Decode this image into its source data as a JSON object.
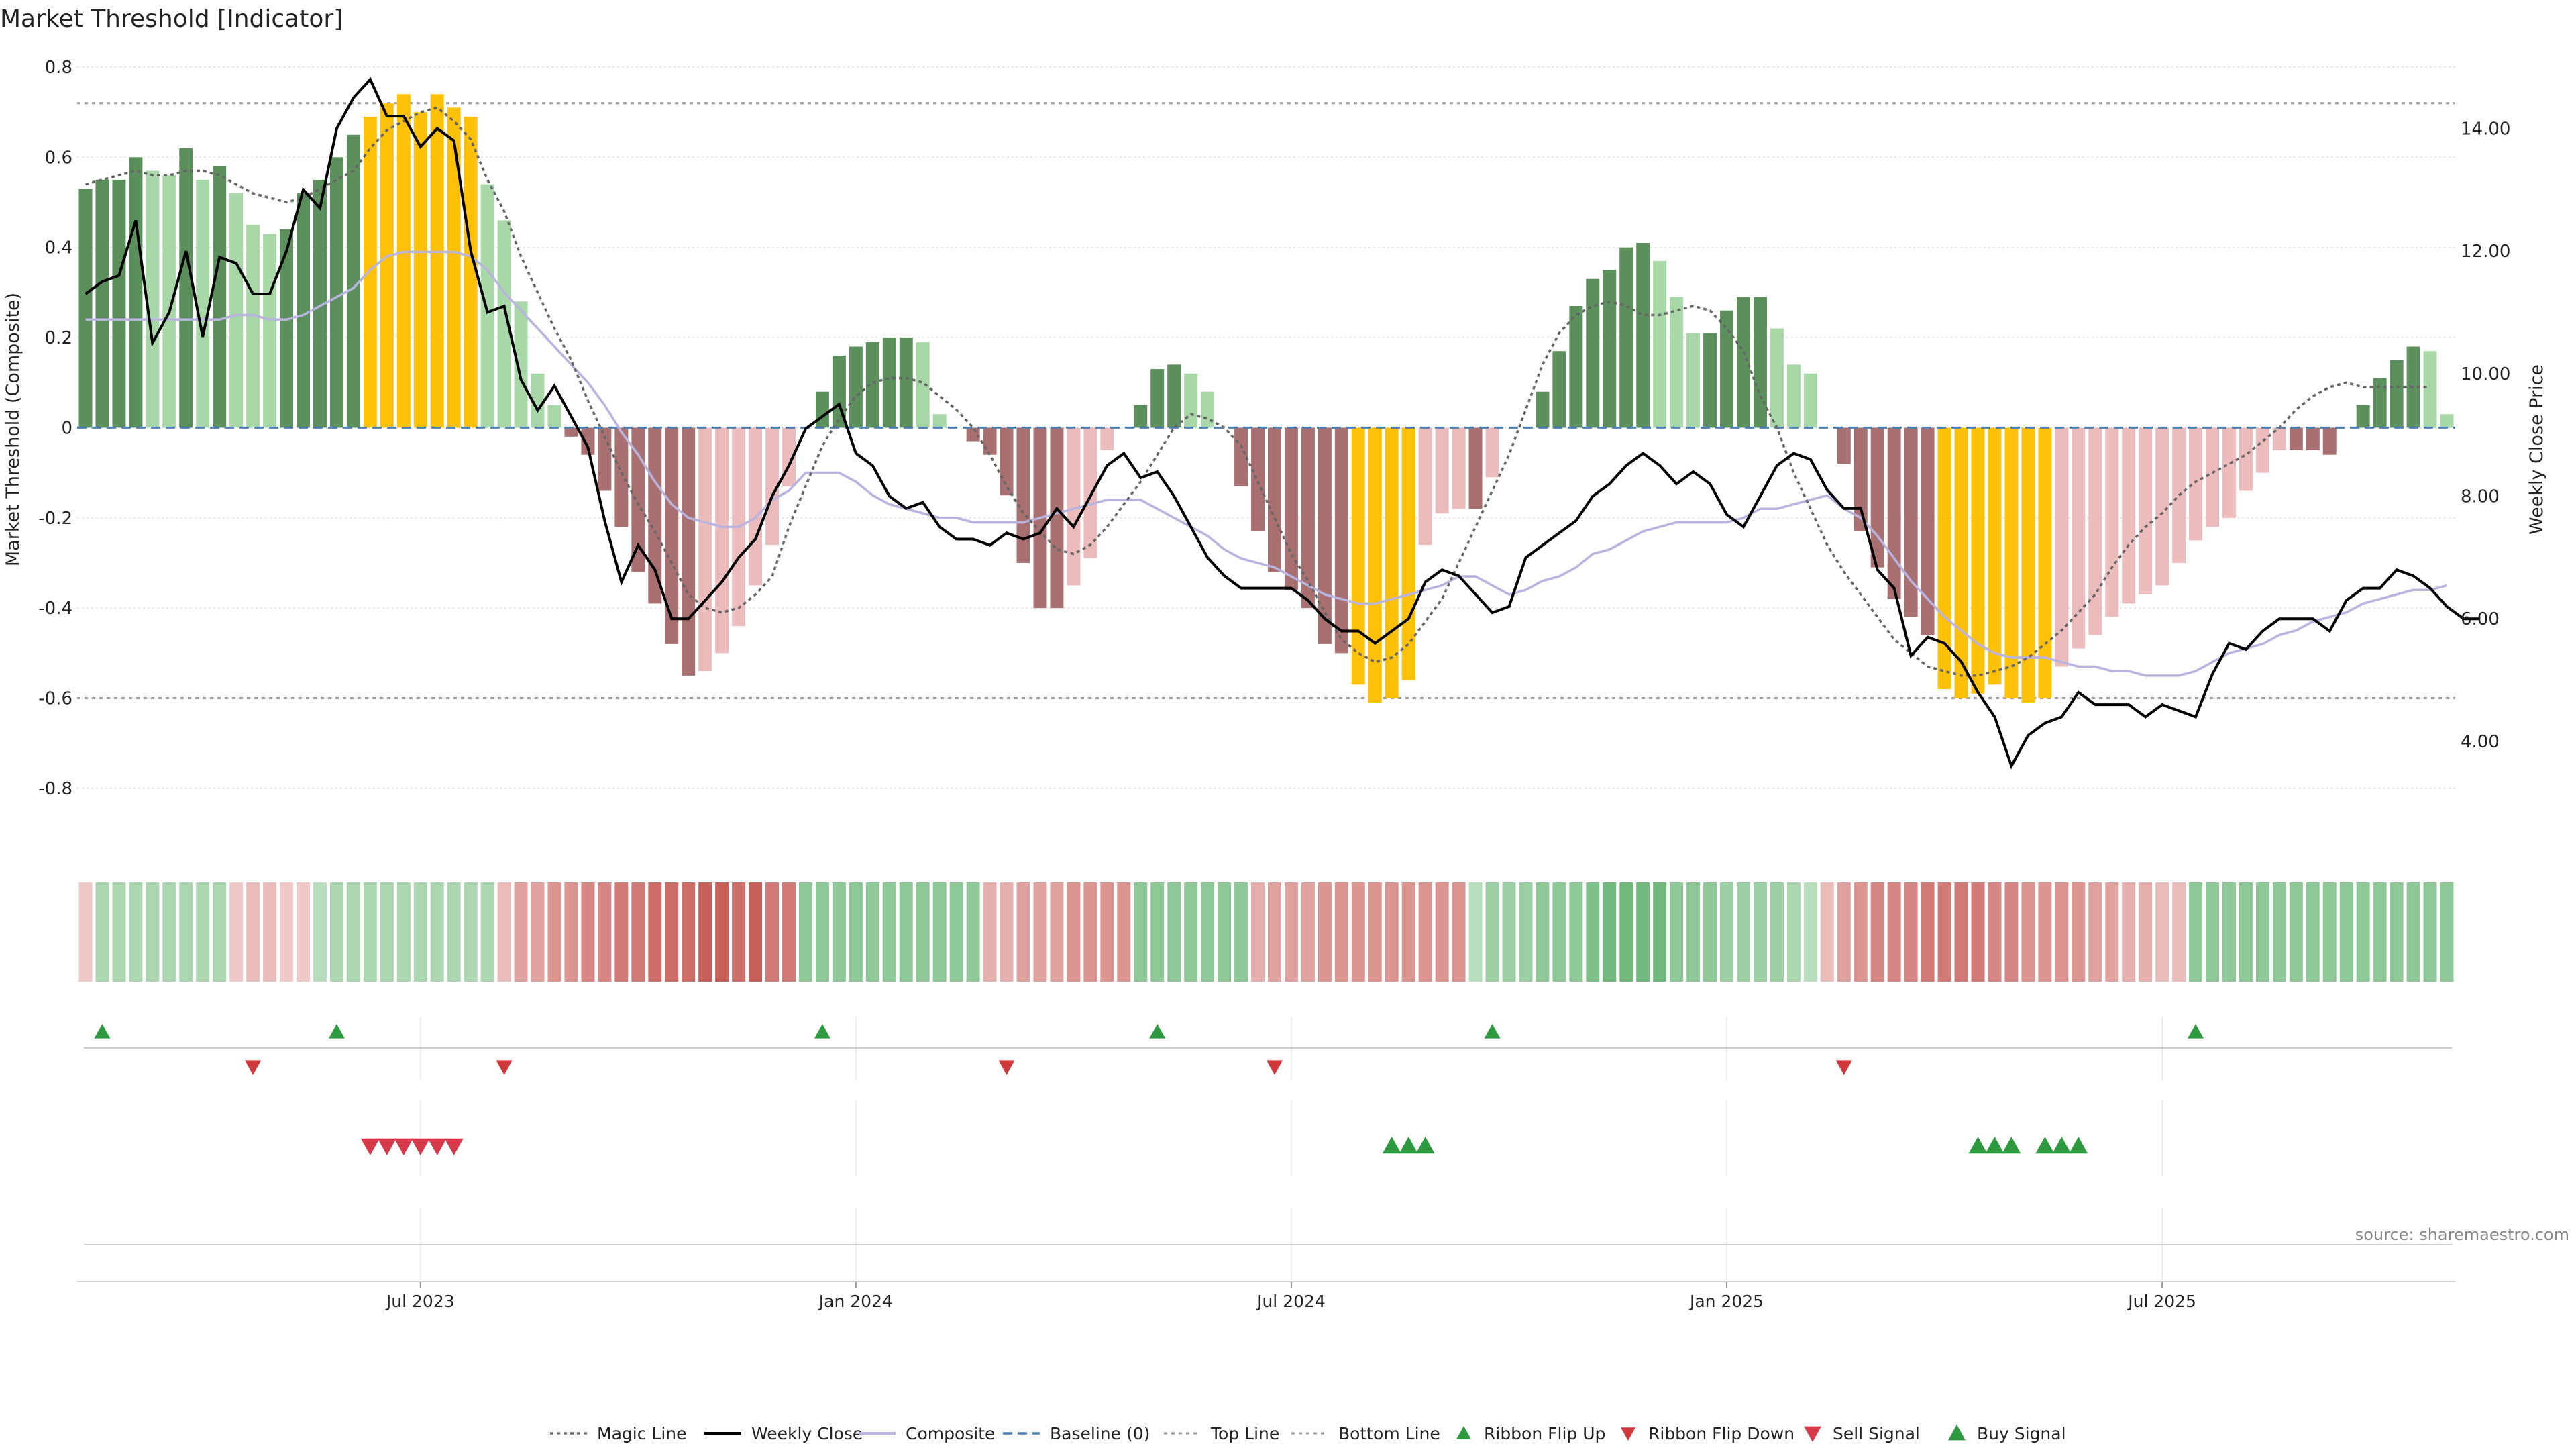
{
  "chart_data": {
    "type": "bar",
    "title": "Market Threshold [Indicator]",
    "ylabel": "Market Threshold (Composite)",
    "y2label": "Weekly Close Price",
    "source": "source: sharemaestro.com",
    "ylim": [
      -0.9,
      0.8
    ],
    "y2lim": [
      2.5,
      15.0
    ],
    "yticks": [
      "0.8",
      "0.6",
      "0.4",
      "0.2",
      "0",
      "-0.2",
      "-0.4",
      "-0.6",
      "-0.8"
    ],
    "y2ticks": [
      "14.00",
      "12.00",
      "10.00",
      "8.00",
      "6.00",
      "4.00"
    ],
    "xticks": [
      "Jul 2023",
      "Jan 2024",
      "Jul 2024",
      "Jan 2025",
      "Jul 2025"
    ],
    "xtick_week_index": [
      20.5,
      46.5,
      72.5,
      98.5,
      124.5
    ],
    "top_line": 0.72,
    "bottom_line": -0.6,
    "colors": {
      "strong_pos": "#5b8f5b",
      "weak_pos": "#a8d8a8",
      "strong_neg": "#a87070",
      "weak_neg": "#ecbcbc",
      "extreme": "#ffc107",
      "close": "#000000",
      "composite": "#b9b3e0",
      "magic": "#666666",
      "baseline": "#4a7fb5",
      "threshold": "#999999",
      "buy": "#2e9a3f",
      "sell": "#d63a4a",
      "flip_up": "#2e9a3f",
      "flip_down": "#d0393b"
    },
    "histogram": [
      0.53,
      0.55,
      0.55,
      0.6,
      0.57,
      0.56,
      0.62,
      0.55,
      0.58,
      0.52,
      0.45,
      0.43,
      0.44,
      0.52,
      0.55,
      0.6,
      0.65,
      0.69,
      0.72,
      0.74,
      0.7,
      0.74,
      0.71,
      0.69,
      0.54,
      0.46,
      0.28,
      0.12,
      0.05,
      -0.02,
      -0.06,
      -0.14,
      -0.22,
      -0.32,
      -0.39,
      -0.48,
      -0.55,
      -0.54,
      -0.5,
      -0.44,
      -0.35,
      -0.26,
      -0.13,
      0.0,
      0.08,
      0.16,
      0.18,
      0.19,
      0.2,
      0.2,
      0.19,
      0.03,
      0.0,
      -0.03,
      -0.06,
      -0.15,
      -0.3,
      -0.4,
      -0.4,
      -0.35,
      -0.29,
      -0.05,
      0.0,
      0.05,
      0.13,
      0.14,
      0.12,
      0.08,
      0.0,
      -0.13,
      -0.23,
      -0.32,
      -0.36,
      -0.4,
      -0.48,
      -0.5,
      -0.57,
      -0.61,
      -0.6,
      -0.56,
      -0.26,
      -0.19,
      -0.18,
      -0.18,
      -0.11,
      0.0,
      0.0,
      0.08,
      0.17,
      0.27,
      0.33,
      0.35,
      0.4,
      0.41,
      0.37,
      0.29,
      0.21,
      0.21,
      0.26,
      0.29,
      0.29,
      0.22,
      0.14,
      0.12,
      0.0,
      -0.08,
      -0.23,
      -0.31,
      -0.38,
      -0.42,
      -0.46,
      -0.58,
      -0.6,
      -0.59,
      -0.57,
      -0.6,
      -0.61,
      -0.6,
      -0.53,
      -0.49,
      -0.46,
      -0.42,
      -0.39,
      -0.37,
      -0.35,
      -0.3,
      -0.25,
      -0.22,
      -0.2,
      -0.14,
      -0.1,
      -0.05,
      -0.05,
      -0.05,
      -0.06,
      0.0,
      0.05,
      0.11,
      0.15,
      0.18,
      0.17,
      0.03
    ],
    "close": [
      11.3,
      11.5,
      11.6,
      12.5,
      10.5,
      11.0,
      12.0,
      10.6,
      11.9,
      11.8,
      11.3,
      11.3,
      12.0,
      13.0,
      12.7,
      14.0,
      14.5,
      14.8,
      14.2,
      14.2,
      13.7,
      14.0,
      13.8,
      12.0,
      11.0,
      11.1,
      9.9,
      9.4,
      9.8,
      9.3,
      8.8,
      7.6,
      6.6,
      7.2,
      6.8,
      6.0,
      6.0,
      6.3,
      6.6,
      7.0,
      7.3,
      8.0,
      8.5,
      9.1,
      9.3,
      9.5,
      8.7,
      8.5,
      8.0,
      7.8,
      7.9,
      7.5,
      7.3,
      7.3,
      7.2,
      7.4,
      7.3,
      7.4,
      7.8,
      7.5,
      8.0,
      8.5,
      8.7,
      8.3,
      8.4,
      8.0,
      7.5,
      7.0,
      6.7,
      6.5,
      6.5,
      6.5,
      6.5,
      6.3,
      6.0,
      5.8,
      5.8,
      5.6,
      5.8,
      6.0,
      6.6,
      6.8,
      6.7,
      6.4,
      6.1,
      6.2,
      7.0,
      7.2,
      7.4,
      7.6,
      8.0,
      8.2,
      8.5,
      8.7,
      8.5,
      8.2,
      8.4,
      8.2,
      7.7,
      7.5,
      8.0,
      8.5,
      8.7,
      8.6,
      8.1,
      7.8,
      7.8,
      6.8,
      6.5,
      5.4,
      5.7,
      5.6,
      5.3,
      4.8,
      4.4,
      3.6,
      4.1,
      4.3,
      4.4,
      4.8,
      4.6,
      4.6,
      4.6,
      4.4,
      4.6,
      4.5,
      4.4,
      5.1,
      5.6,
      5.5,
      5.8,
      6.0,
      6.0,
      6.0,
      5.8,
      6.3,
      6.5,
      6.5,
      6.8,
      6.7,
      6.5,
      6.2,
      6.0,
      6.0
    ],
    "composite": [
      0.24,
      0.24,
      0.24,
      0.24,
      0.24,
      0.24,
      0.24,
      0.24,
      0.24,
      0.25,
      0.25,
      0.24,
      0.24,
      0.25,
      0.27,
      0.29,
      0.31,
      0.35,
      0.38,
      0.39,
      0.39,
      0.39,
      0.39,
      0.38,
      0.35,
      0.3,
      0.26,
      0.22,
      0.18,
      0.14,
      0.1,
      0.05,
      -0.01,
      -0.06,
      -0.12,
      -0.17,
      -0.2,
      -0.21,
      -0.22,
      -0.22,
      -0.2,
      -0.16,
      -0.14,
      -0.1,
      -0.1,
      -0.1,
      -0.12,
      -0.15,
      -0.17,
      -0.18,
      -0.19,
      -0.2,
      -0.2,
      -0.21,
      -0.21,
      -0.21,
      -0.21,
      -0.2,
      -0.19,
      -0.18,
      -0.17,
      -0.16,
      -0.16,
      -0.16,
      -0.18,
      -0.2,
      -0.22,
      -0.24,
      -0.27,
      -0.29,
      -0.3,
      -0.31,
      -0.33,
      -0.35,
      -0.37,
      -0.38,
      -0.39,
      -0.39,
      -0.38,
      -0.37,
      -0.36,
      -0.35,
      -0.33,
      -0.33,
      -0.35,
      -0.37,
      -0.36,
      -0.34,
      -0.33,
      -0.31,
      -0.28,
      -0.27,
      -0.25,
      -0.23,
      -0.22,
      -0.21,
      -0.21,
      -0.21,
      -0.21,
      -0.2,
      -0.18,
      -0.18,
      -0.17,
      -0.16,
      -0.15,
      -0.18,
      -0.2,
      -0.24,
      -0.29,
      -0.34,
      -0.38,
      -0.42,
      -0.45,
      -0.48,
      -0.5,
      -0.51,
      -0.51,
      -0.51,
      -0.52,
      -0.53,
      -0.53,
      -0.54,
      -0.54,
      -0.55,
      -0.55,
      -0.55,
      -0.54,
      -0.52,
      -0.5,
      -0.49,
      -0.48,
      -0.46,
      -0.45,
      -0.43,
      -0.42,
      -0.41,
      -0.39,
      -0.38,
      -0.37,
      -0.36,
      -0.36,
      -0.35
    ],
    "magic_line": [
      0.54,
      0.55,
      0.56,
      0.57,
      0.56,
      0.56,
      0.57,
      0.57,
      0.56,
      0.54,
      0.52,
      0.51,
      0.5,
      0.51,
      0.53,
      0.55,
      0.57,
      0.62,
      0.66,
      0.68,
      0.7,
      0.71,
      0.68,
      0.64,
      0.55,
      0.48,
      0.38,
      0.3,
      0.22,
      0.15,
      0.06,
      -0.02,
      -0.1,
      -0.17,
      -0.23,
      -0.3,
      -0.37,
      -0.4,
      -0.41,
      -0.4,
      -0.37,
      -0.33,
      -0.22,
      -0.13,
      -0.04,
      0.02,
      0.07,
      0.1,
      0.11,
      0.11,
      0.1,
      0.07,
      0.04,
      0.0,
      -0.06,
      -0.13,
      -0.19,
      -0.23,
      -0.27,
      -0.28,
      -0.26,
      -0.22,
      -0.17,
      -0.12,
      -0.06,
      0.0,
      0.03,
      0.02,
      0.0,
      -0.04,
      -0.12,
      -0.2,
      -0.28,
      -0.34,
      -0.41,
      -0.47,
      -0.5,
      -0.52,
      -0.51,
      -0.48,
      -0.43,
      -0.38,
      -0.3,
      -0.22,
      -0.14,
      -0.06,
      0.04,
      0.14,
      0.21,
      0.25,
      0.27,
      0.28,
      0.27,
      0.25,
      0.25,
      0.26,
      0.27,
      0.26,
      0.22,
      0.17,
      0.07,
      0.0,
      -0.1,
      -0.18,
      -0.26,
      -0.32,
      -0.37,
      -0.42,
      -0.47,
      -0.5,
      -0.53,
      -0.54,
      -0.55,
      -0.55,
      -0.54,
      -0.53,
      -0.51,
      -0.48,
      -0.45,
      -0.41,
      -0.37,
      -0.31,
      -0.26,
      -0.22,
      -0.19,
      -0.15,
      -0.12,
      -0.1,
      -0.08,
      -0.06,
      -0.03,
      0.0,
      0.04,
      0.07,
      0.09,
      0.1,
      0.09,
      0.09,
      0.09,
      0.09,
      0.09
    ],
    "ribbon": [
      -0.1,
      0.3,
      0.3,
      0.3,
      0.3,
      0.3,
      0.3,
      0.3,
      0.3,
      -0.1,
      -0.2,
      -0.2,
      -0.1,
      -0.1,
      0.2,
      0.3,
      0.3,
      0.3,
      0.3,
      0.3,
      0.3,
      0.3,
      0.3,
      0.3,
      0.3,
      -0.2,
      -0.4,
      -0.4,
      -0.5,
      -0.5,
      -0.6,
      -0.6,
      -0.7,
      -0.7,
      -0.8,
      -0.8,
      -0.8,
      -0.9,
      -0.9,
      -0.8,
      -0.9,
      -0.7,
      -0.7,
      0.5,
      0.5,
      0.5,
      0.5,
      0.5,
      0.5,
      0.5,
      0.5,
      0.5,
      0.5,
      0.5,
      -0.3,
      -0.3,
      -0.4,
      -0.4,
      -0.4,
      -0.5,
      -0.5,
      -0.5,
      -0.5,
      0.5,
      0.5,
      0.5,
      0.5,
      0.5,
      0.5,
      0.5,
      -0.3,
      -0.4,
      -0.4,
      -0.4,
      -0.5,
      -0.5,
      -0.5,
      -0.5,
      -0.5,
      -0.5,
      -0.5,
      -0.5,
      -0.5,
      0.2,
      0.4,
      0.4,
      0.4,
      0.5,
      0.5,
      0.5,
      0.6,
      0.7,
      0.7,
      0.7,
      0.7,
      0.5,
      0.5,
      0.5,
      0.4,
      0.4,
      0.4,
      0.4,
      0.3,
      0.2,
      -0.2,
      -0.4,
      -0.5,
      -0.6,
      -0.6,
      -0.6,
      -0.7,
      -0.7,
      -0.7,
      -0.7,
      -0.6,
      -0.6,
      -0.5,
      -0.5,
      -0.5,
      -0.5,
      -0.4,
      -0.4,
      -0.3,
      -0.3,
      -0.2,
      -0.2,
      0.5,
      0.5,
      0.5,
      0.5,
      0.5,
      0.5,
      0.5,
      0.5,
      0.5,
      0.5,
      0.5,
      0.5,
      0.5,
      0.5,
      0.5,
      0.5
    ],
    "ribbon_flip_up": [
      1,
      15,
      44,
      64,
      84,
      126
    ],
    "ribbon_flip_down": [
      10,
      25,
      55,
      71,
      105
    ],
    "sell_signal": [
      17,
      18,
      19,
      20,
      21,
      22
    ],
    "buy_signal": [
      78,
      79,
      80,
      113,
      114,
      115,
      117,
      118,
      119
    ],
    "legend": [
      "Magic Line",
      "Weekly Close",
      "Composite",
      "Baseline (0)",
      "Top Line",
      "Bottom Line",
      "Ribbon Flip Up",
      "Ribbon Flip Down",
      "Sell Signal",
      "Buy Signal"
    ]
  }
}
